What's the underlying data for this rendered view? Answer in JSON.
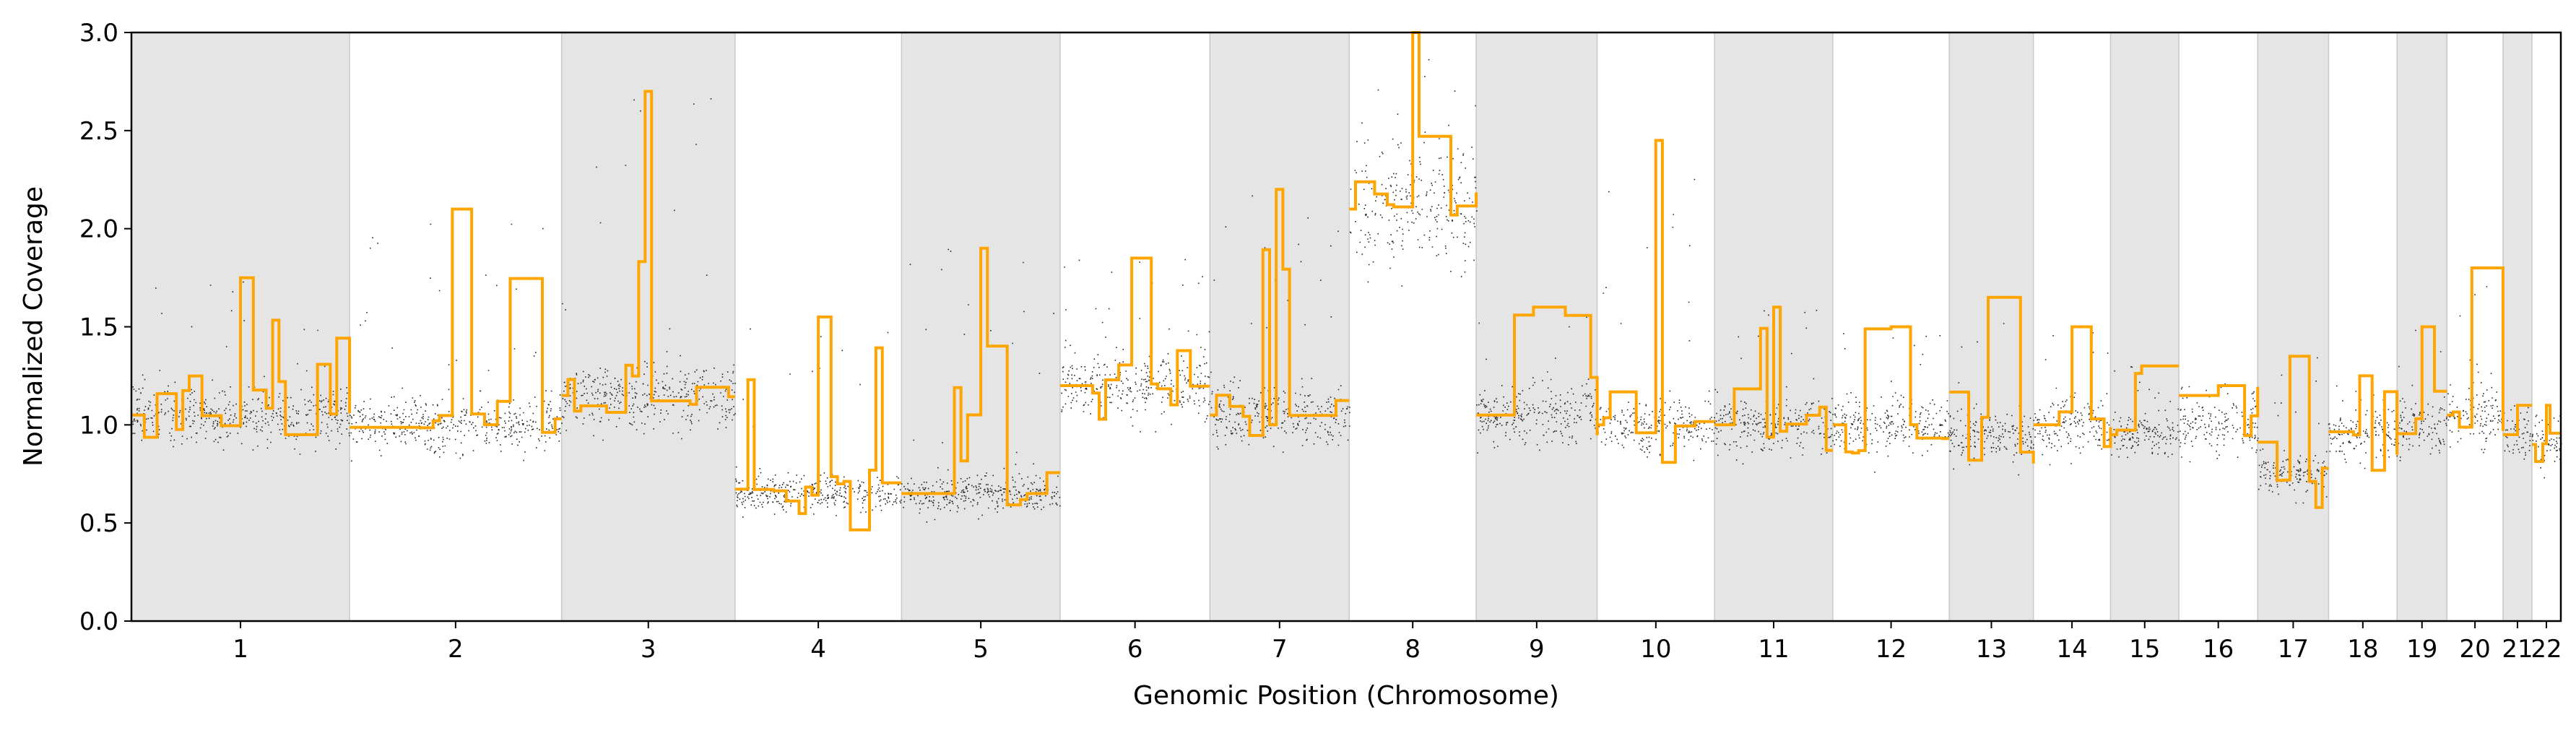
{
  "chart_data": {
    "type": "scatter",
    "title": "",
    "xlabel": "Genomic Position (Chromosome)",
    "ylabel": "Normalized Coverage",
    "ylim": [
      0,
      3
    ],
    "yticks": [
      "0.0",
      "0.5",
      "1.0",
      "1.5",
      "2.0",
      "2.5",
      "3.0"
    ],
    "grid": false,
    "legend": "none",
    "colors": {
      "points": "#000000",
      "segments": "#ffa500",
      "shade": "#e5e5e5",
      "shade_edge": "#c8c8c8"
    },
    "chromosomes": [
      {
        "name": "1",
        "length": 249,
        "shaded": true,
        "level": 1.05,
        "peak": 1.75
      },
      {
        "name": "2",
        "length": 242,
        "shaded": false,
        "level": 1.0,
        "peak": 2.1
      },
      {
        "name": "3",
        "length": 198,
        "shaded": true,
        "level": 1.15,
        "peak": 2.7
      },
      {
        "name": "4",
        "length": 190,
        "shaded": false,
        "level": 0.65,
        "peak": 1.55
      },
      {
        "name": "5",
        "length": 181,
        "shaded": true,
        "level": 0.65,
        "peak": 1.9
      },
      {
        "name": "6",
        "length": 171,
        "shaded": false,
        "level": 1.2,
        "peak": 1.85
      },
      {
        "name": "7",
        "length": 159,
        "shaded": true,
        "level": 1.05,
        "peak": 2.2
      },
      {
        "name": "8",
        "length": 145,
        "shaded": false,
        "level": 2.1,
        "peak": 3.0
      },
      {
        "name": "9",
        "length": 138,
        "shaded": true,
        "level": 1.05,
        "peak": 1.6
      },
      {
        "name": "10",
        "length": 134,
        "shaded": false,
        "level": 1.0,
        "peak": 2.45
      },
      {
        "name": "11",
        "length": 135,
        "shaded": true,
        "level": 1.0,
        "peak": 1.6
      },
      {
        "name": "12",
        "length": 133,
        "shaded": false,
        "level": 1.0,
        "peak": 1.5
      },
      {
        "name": "13",
        "length": 96,
        "shaded": true,
        "level": 0.95,
        "peak": 1.65
      },
      {
        "name": "14",
        "length": 88,
        "shaded": false,
        "level": 1.0,
        "peak": 1.5
      },
      {
        "name": "15",
        "length": 78,
        "shaded": true,
        "level": 0.95,
        "peak": 1.3
      },
      {
        "name": "16",
        "length": 90,
        "shaded": false,
        "level": 1.0,
        "peak": 1.2
      },
      {
        "name": "17",
        "length": 81,
        "shaded": true,
        "level": 0.75,
        "peak": 1.35
      },
      {
        "name": "18",
        "length": 78,
        "shaded": false,
        "level": 0.95,
        "peak": 1.25
      },
      {
        "name": "19",
        "length": 57,
        "shaded": true,
        "level": 1.0,
        "peak": 1.5
      },
      {
        "name": "20",
        "length": 64,
        "shaded": false,
        "level": 1.05,
        "peak": 1.8
      },
      {
        "name": "21",
        "length": 33,
        "shaded": true,
        "level": 0.95,
        "peak": 1.1
      },
      {
        "name": "22",
        "length": 33,
        "shaded": false,
        "level": 0.9,
        "peak": 1.1
      }
    ]
  }
}
